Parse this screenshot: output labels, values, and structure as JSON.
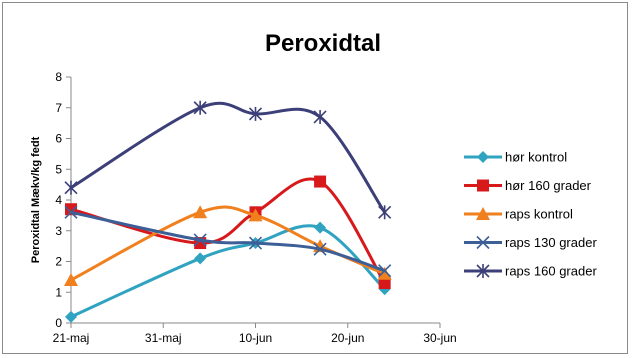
{
  "chart_data": {
    "type": "line",
    "title": "Peroxidtal",
    "ylabel": "Peroxidtal Mækv/kg fedt",
    "xlabel": "",
    "x_ticks": [
      "21-maj",
      "31-maj",
      "10-jun",
      "20-jun",
      "30-jun"
    ],
    "xlim": [
      "2012-05-21",
      "2012-06-30"
    ],
    "ylim": [
      0,
      8
    ],
    "y_ticks": [
      "0",
      "1",
      "2",
      "3",
      "4",
      "5",
      "6",
      "7",
      "8"
    ],
    "grid": false,
    "legend": "right",
    "x": [
      "2012-05-21",
      "2012-06-04",
      "2012-06-10",
      "2012-06-17",
      "2012-06-24"
    ],
    "series": [
      {
        "name": "hør kontrol",
        "color": "#2FA3C0",
        "marker": "diamond",
        "values": [
          0.2,
          2.1,
          2.6,
          3.1,
          1.1
        ]
      },
      {
        "name": "hør 160 grader",
        "color": "#D7191C",
        "marker": "square",
        "values": [
          3.7,
          2.6,
          3.6,
          4.6,
          1.3
        ]
      },
      {
        "name": "raps kontrol",
        "color": "#F07F1E",
        "marker": "triangle",
        "values": [
          1.4,
          3.6,
          3.5,
          2.5,
          1.6
        ]
      },
      {
        "name": "raps 130 grader",
        "color": "#3C5F97",
        "marker": "x",
        "values": [
          3.6,
          2.7,
          2.6,
          2.4,
          1.7
        ]
      },
      {
        "name": "raps 160 grader",
        "color": "#3C3F78",
        "marker": "star",
        "values": [
          4.4,
          7.0,
          6.8,
          6.7,
          3.6
        ]
      }
    ]
  }
}
